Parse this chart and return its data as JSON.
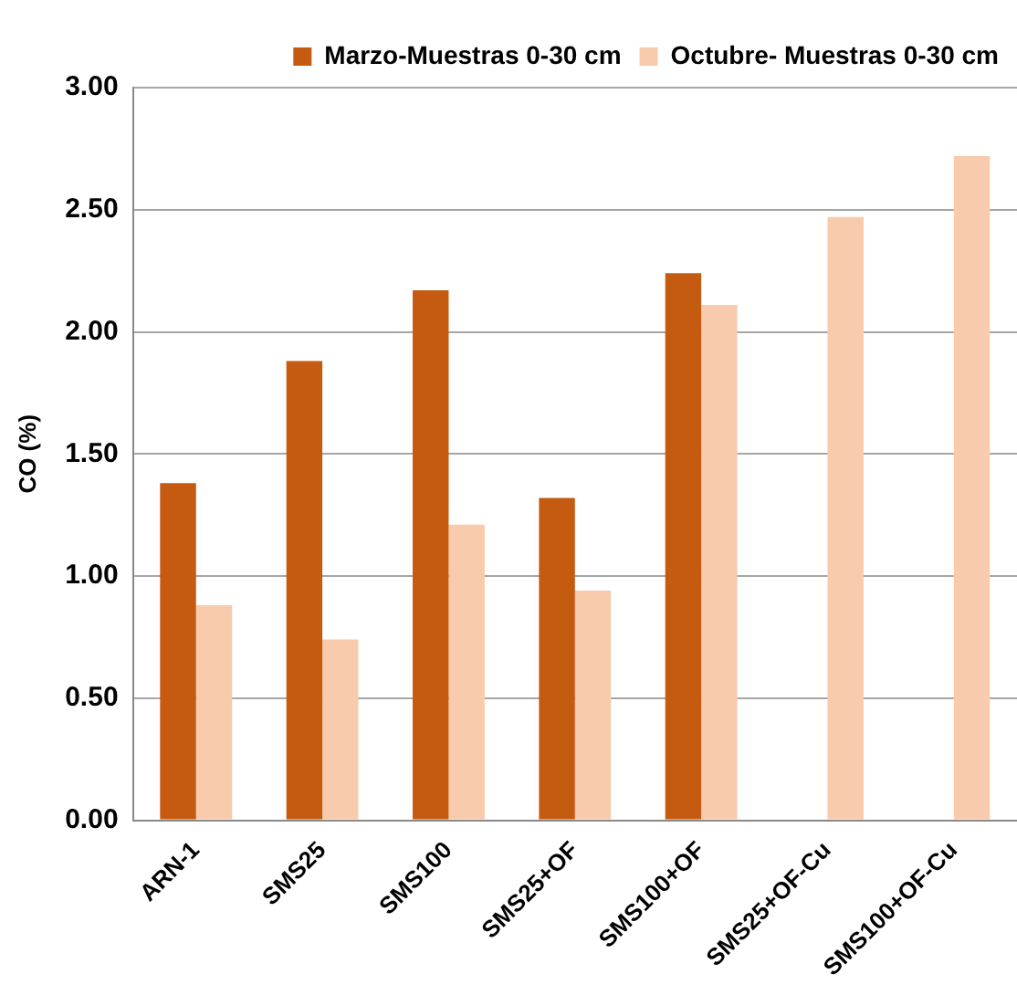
{
  "chart_data": {
    "type": "bar",
    "ylabel": "CO (%)",
    "categories": [
      "ARN-1",
      "SMS25",
      "SMS100",
      "SMS25+OF",
      "SMS100+OF",
      "SMS25+OF-Cu",
      "SMS100+OF-Cu"
    ],
    "series": [
      {
        "name": "Marzo-Muestras 0-30 cm",
        "color": "#c55a11",
        "values": [
          1.38,
          1.88,
          2.17,
          1.32,
          2.24,
          null,
          null
        ]
      },
      {
        "name": "Octubre- Muestras 0-30 cm",
        "color": "#f8cbad",
        "values": [
          0.88,
          0.74,
          1.21,
          0.94,
          2.11,
          2.47,
          2.72
        ]
      }
    ],
    "ylim": [
      0,
      3
    ],
    "yticks": [
      {
        "value": 0,
        "label": "0.00"
      },
      {
        "value": 0.5,
        "label": "0.50"
      },
      {
        "value": 1,
        "label": "1.00"
      },
      {
        "value": 1.5,
        "label": "1.50"
      },
      {
        "value": 2,
        "label": "2.00"
      },
      {
        "value": 2.5,
        "label": "2.50"
      },
      {
        "value": 3,
        "label": "3.00"
      }
    ],
    "grid": "y",
    "legend": "top right"
  }
}
